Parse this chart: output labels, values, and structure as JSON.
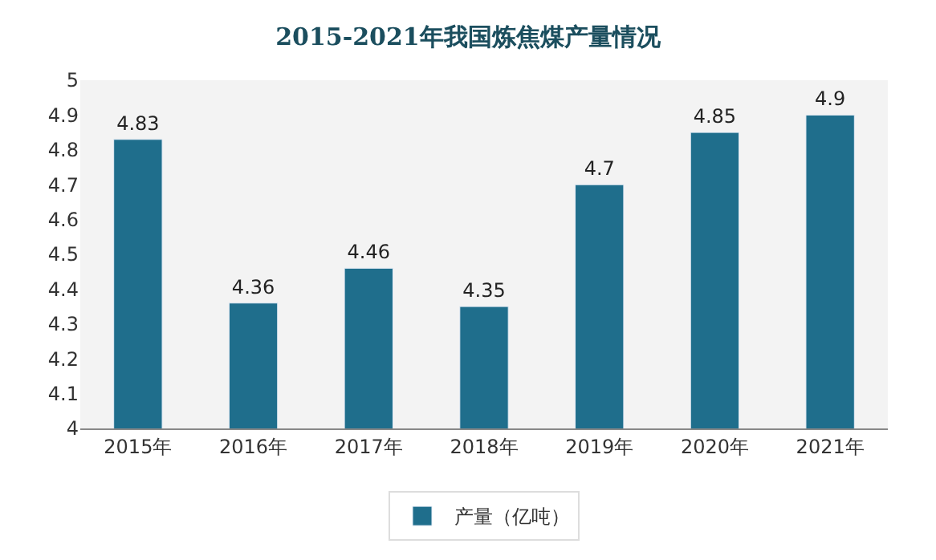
{
  "chart_data": {
    "type": "bar",
    "title": "2015-2021年我国炼焦煤产量情况",
    "categories": [
      "2015年",
      "2016年",
      "2017年",
      "2018年",
      "2019年",
      "2020年",
      "2021年"
    ],
    "series": [
      {
        "name": "产量（亿吨）",
        "color": "#1f6e8c",
        "values": [
          4.83,
          4.36,
          4.46,
          4.35,
          4.7,
          4.85,
          4.9
        ]
      }
    ],
    "ylim": [
      4,
      5
    ],
    "yticks": [
      4,
      4.1,
      4.2,
      4.3,
      4.4,
      4.5,
      4.6,
      4.7,
      4.8,
      4.9,
      5
    ],
    "data_labels": true,
    "legend": "bottom",
    "grid": false
  }
}
